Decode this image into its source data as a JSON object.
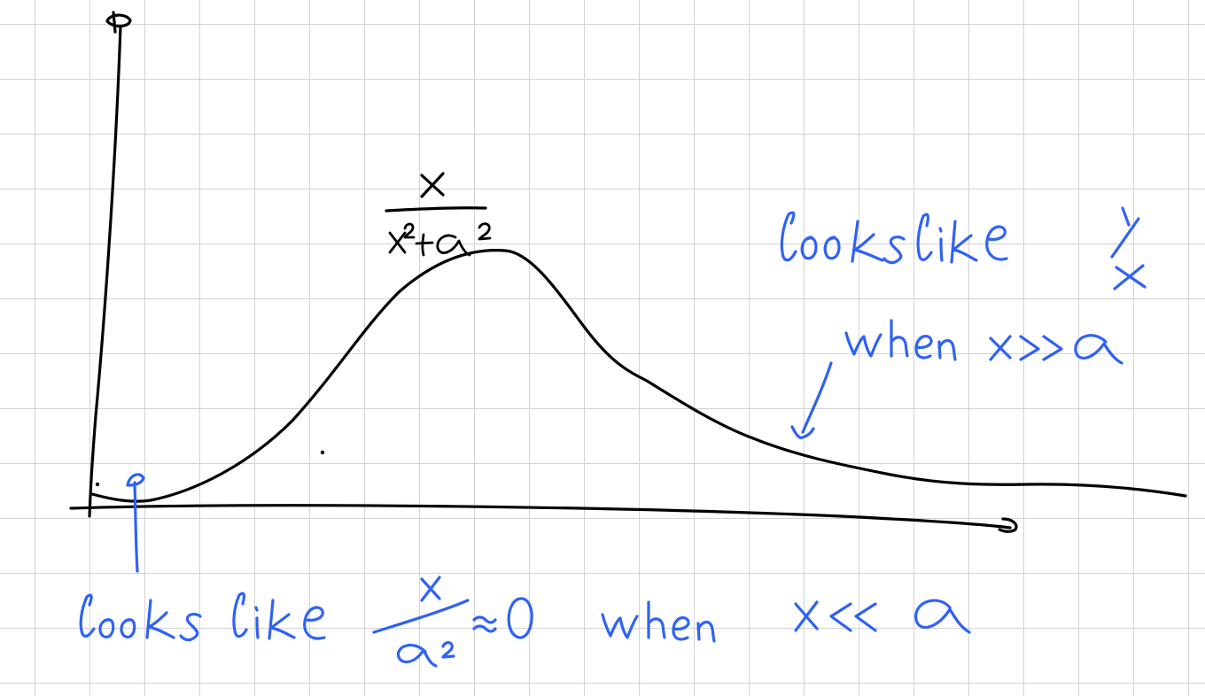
{
  "colors": {
    "ink_black": "#000000",
    "ink_blue": "#2f62f4",
    "grid": "#d3d3d3",
    "paper": "#ffffff"
  },
  "formula": {
    "numerator": "x",
    "denominator": "x² + α²"
  },
  "annotation_large_x": {
    "text": "looks like 1/x when x>>α"
  },
  "annotation_small_x": {
    "text": "looks like x/α² ≈ 0 when x<<α"
  }
}
